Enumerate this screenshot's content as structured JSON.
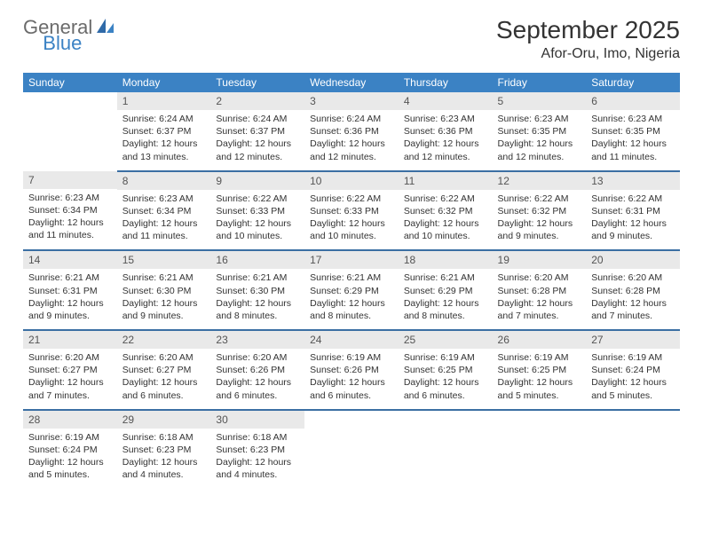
{
  "logo": {
    "part1": "General",
    "part2": "Blue",
    "accent": "#3b82c4",
    "gray": "#6b6b6b"
  },
  "title": "September 2025",
  "location": "Afor-Oru, Imo, Nigeria",
  "colors": {
    "header_bg": "#3b82c4",
    "header_text": "#ffffff",
    "daynum_bg": "#e9e9e9",
    "daynum_text": "#555555",
    "cell_border": "#3b6fa3",
    "body_text": "#333333"
  },
  "fonts": {
    "title_size": 28,
    "location_size": 16,
    "dayhead_size": 12,
    "daynum_size": 12,
    "data_size": 10.5
  },
  "day_names": [
    "Sunday",
    "Monday",
    "Tuesday",
    "Wednesday",
    "Thursday",
    "Friday",
    "Saturday"
  ],
  "weeks": [
    [
      null,
      {
        "n": "1",
        "sr": "6:24 AM",
        "ss": "6:37 PM",
        "dl": "12 hours and 13 minutes."
      },
      {
        "n": "2",
        "sr": "6:24 AM",
        "ss": "6:37 PM",
        "dl": "12 hours and 12 minutes."
      },
      {
        "n": "3",
        "sr": "6:24 AM",
        "ss": "6:36 PM",
        "dl": "12 hours and 12 minutes."
      },
      {
        "n": "4",
        "sr": "6:23 AM",
        "ss": "6:36 PM",
        "dl": "12 hours and 12 minutes."
      },
      {
        "n": "5",
        "sr": "6:23 AM",
        "ss": "6:35 PM",
        "dl": "12 hours and 12 minutes."
      },
      {
        "n": "6",
        "sr": "6:23 AM",
        "ss": "6:35 PM",
        "dl": "12 hours and 11 minutes."
      }
    ],
    [
      {
        "n": "7",
        "sr": "6:23 AM",
        "ss": "6:34 PM",
        "dl": "12 hours and 11 minutes."
      },
      {
        "n": "8",
        "sr": "6:23 AM",
        "ss": "6:34 PM",
        "dl": "12 hours and 11 minutes."
      },
      {
        "n": "9",
        "sr": "6:22 AM",
        "ss": "6:33 PM",
        "dl": "12 hours and 10 minutes."
      },
      {
        "n": "10",
        "sr": "6:22 AM",
        "ss": "6:33 PM",
        "dl": "12 hours and 10 minutes."
      },
      {
        "n": "11",
        "sr": "6:22 AM",
        "ss": "6:32 PM",
        "dl": "12 hours and 10 minutes."
      },
      {
        "n": "12",
        "sr": "6:22 AM",
        "ss": "6:32 PM",
        "dl": "12 hours and 9 minutes."
      },
      {
        "n": "13",
        "sr": "6:22 AM",
        "ss": "6:31 PM",
        "dl": "12 hours and 9 minutes."
      }
    ],
    [
      {
        "n": "14",
        "sr": "6:21 AM",
        "ss": "6:31 PM",
        "dl": "12 hours and 9 minutes."
      },
      {
        "n": "15",
        "sr": "6:21 AM",
        "ss": "6:30 PM",
        "dl": "12 hours and 9 minutes."
      },
      {
        "n": "16",
        "sr": "6:21 AM",
        "ss": "6:30 PM",
        "dl": "12 hours and 8 minutes."
      },
      {
        "n": "17",
        "sr": "6:21 AM",
        "ss": "6:29 PM",
        "dl": "12 hours and 8 minutes."
      },
      {
        "n": "18",
        "sr": "6:21 AM",
        "ss": "6:29 PM",
        "dl": "12 hours and 8 minutes."
      },
      {
        "n": "19",
        "sr": "6:20 AM",
        "ss": "6:28 PM",
        "dl": "12 hours and 7 minutes."
      },
      {
        "n": "20",
        "sr": "6:20 AM",
        "ss": "6:28 PM",
        "dl": "12 hours and 7 minutes."
      }
    ],
    [
      {
        "n": "21",
        "sr": "6:20 AM",
        "ss": "6:27 PM",
        "dl": "12 hours and 7 minutes."
      },
      {
        "n": "22",
        "sr": "6:20 AM",
        "ss": "6:27 PM",
        "dl": "12 hours and 6 minutes."
      },
      {
        "n": "23",
        "sr": "6:20 AM",
        "ss": "6:26 PM",
        "dl": "12 hours and 6 minutes."
      },
      {
        "n": "24",
        "sr": "6:19 AM",
        "ss": "6:26 PM",
        "dl": "12 hours and 6 minutes."
      },
      {
        "n": "25",
        "sr": "6:19 AM",
        "ss": "6:25 PM",
        "dl": "12 hours and 6 minutes."
      },
      {
        "n": "26",
        "sr": "6:19 AM",
        "ss": "6:25 PM",
        "dl": "12 hours and 5 minutes."
      },
      {
        "n": "27",
        "sr": "6:19 AM",
        "ss": "6:24 PM",
        "dl": "12 hours and 5 minutes."
      }
    ],
    [
      {
        "n": "28",
        "sr": "6:19 AM",
        "ss": "6:24 PM",
        "dl": "12 hours and 5 minutes."
      },
      {
        "n": "29",
        "sr": "6:18 AM",
        "ss": "6:23 PM",
        "dl": "12 hours and 4 minutes."
      },
      {
        "n": "30",
        "sr": "6:18 AM",
        "ss": "6:23 PM",
        "dl": "12 hours and 4 minutes."
      },
      null,
      null,
      null,
      null
    ]
  ],
  "labels": {
    "sunrise": "Sunrise:",
    "sunset": "Sunset:",
    "daylight": "Daylight:"
  }
}
